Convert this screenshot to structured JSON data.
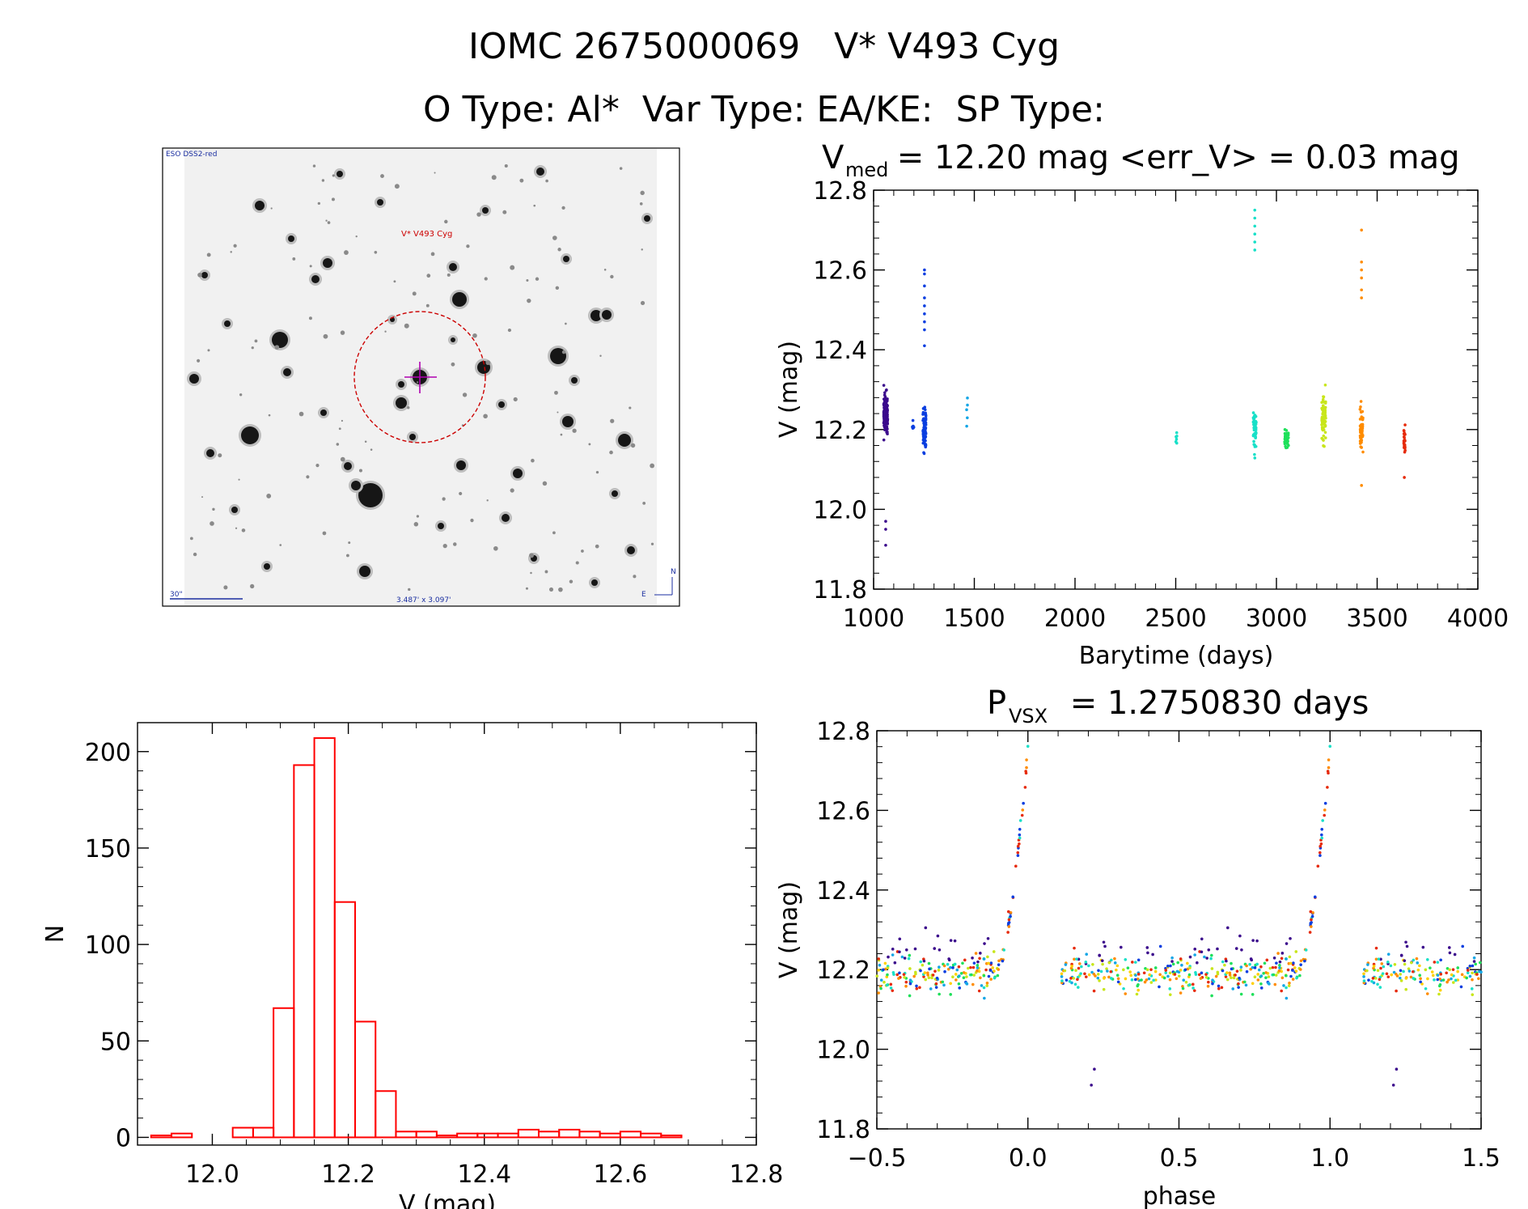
{
  "header": {
    "line1": "IOMC 2675000069   V* V493 Cyg",
    "line2": "O Type: Al*  Var Type: EA/KE:  SP Type:"
  },
  "finder_chart": {
    "survey_label": "ESO DSS2-red",
    "target_label": "V* V493 Cyg",
    "scale_label": "30\"",
    "size_label": "3.487' x 3.097'",
    "north_label": "N",
    "east_label": "E"
  },
  "colors": {
    "histogram": "#ff0000",
    "axis": "#000000",
    "finder_circle": "#cc0000",
    "crosshair": "#b000b0",
    "epoch_palette": [
      "#3b0a8c",
      "#0a3ee0",
      "#14a6e6",
      "#18e0c8",
      "#1ee05a",
      "#c8e61a",
      "#ffd000",
      "#ff8c00",
      "#e62a0a"
    ]
  },
  "chart_data": [
    {
      "type": "scatter",
      "id": "lightcurve",
      "title_main": "V",
      "title_sub": "med",
      "title_rest": " = 12.20 mag <err_V> = 0.03 mag",
      "xlabel": "Barytime (days)",
      "ylabel": "V (mag)",
      "xlim": [
        1000,
        4000
      ],
      "ylim": [
        12.8,
        11.8
      ],
      "xticks": [
        1000,
        1500,
        2000,
        2500,
        3000,
        3500,
        4000
      ],
      "xtick_labels": [
        "1000",
        "1500",
        "2000",
        "2500",
        "3000",
        "3500",
        "4000"
      ],
      "yticks": [
        11.8,
        12.0,
        12.2,
        12.4,
        12.6,
        12.8
      ],
      "ytick_labels": [
        "11.8",
        "12.0",
        "12.2",
        "12.4",
        "12.6",
        "12.8"
      ],
      "groups": [
        {
          "t0": 1050,
          "t1": 1070,
          "center": 12.24,
          "spread": 0.05,
          "n": 140,
          "color_index": 0,
          "outliers": [
            11.91,
            11.95,
            11.97
          ]
        },
        {
          "t0": 1190,
          "t1": 1200,
          "center": 12.21,
          "spread": 0.02,
          "n": 6,
          "color_index": 1,
          "outliers": []
        },
        {
          "t0": 1245,
          "t1": 1260,
          "center": 12.2,
          "spread": 0.06,
          "n": 70,
          "color_index": 1,
          "outliers": [
            12.41,
            12.45,
            12.47,
            12.49,
            12.51,
            12.53,
            12.56,
            12.59,
            12.6
          ]
        },
        {
          "t0": 1460,
          "t1": 1470,
          "center": 12.25,
          "spread": 0.03,
          "n": 5,
          "color_index": 2,
          "outliers": []
        },
        {
          "t0": 2500,
          "t1": 2510,
          "center": 12.18,
          "spread": 0.02,
          "n": 6,
          "color_index": 3,
          "outliers": []
        },
        {
          "t0": 2885,
          "t1": 2900,
          "center": 12.2,
          "spread": 0.05,
          "n": 55,
          "color_index": 3,
          "outliers": [
            12.65,
            12.67,
            12.69,
            12.71,
            12.73,
            12.75
          ]
        },
        {
          "t0": 3040,
          "t1": 3060,
          "center": 12.18,
          "spread": 0.03,
          "n": 35,
          "color_index": 4,
          "outliers": []
        },
        {
          "t0": 3225,
          "t1": 3245,
          "center": 12.23,
          "spread": 0.06,
          "n": 70,
          "color_index": 5,
          "outliers": []
        },
        {
          "t0": 3415,
          "t1": 3430,
          "center": 12.2,
          "spread": 0.06,
          "n": 60,
          "color_index": 7,
          "outliers": [
            12.53,
            12.55,
            12.58,
            12.6,
            12.62,
            12.7,
            12.06
          ]
        },
        {
          "t0": 3630,
          "t1": 3640,
          "center": 12.17,
          "spread": 0.03,
          "n": 22,
          "color_index": 8,
          "outliers": [
            12.08
          ]
        }
      ]
    },
    {
      "type": "bar",
      "id": "histogram",
      "xlabel": "V (mag)",
      "ylabel": "N",
      "xlim": [
        11.89,
        12.8
      ],
      "ylim": [
        -4,
        215
      ],
      "xticks": [
        12.0,
        12.2,
        12.4,
        12.6,
        12.8
      ],
      "xtick_labels": [
        "12.0",
        "12.2",
        "12.4",
        "12.6",
        "12.8"
      ],
      "yticks": [
        0,
        50,
        100,
        150,
        200
      ],
      "ytick_labels": [
        "0",
        "50",
        "100",
        "150",
        "200"
      ],
      "bin_start": 11.91,
      "bin_width": 0.03,
      "values": [
        1,
        2,
        0,
        0,
        5,
        5,
        67,
        193,
        207,
        122,
        60,
        24,
        3,
        3,
        1,
        2,
        2,
        2,
        4,
        3,
        4,
        3,
        2,
        3,
        2,
        1
      ]
    },
    {
      "type": "scatter",
      "id": "phased",
      "title_main": "P",
      "title_sub": "VSX",
      "title_rest": " = 1.2750830 days",
      "xlabel": "phase",
      "ylabel": "V (mag)",
      "period_days": 1.275083,
      "xlim": [
        -0.5,
        1.5
      ],
      "ylim": [
        12.8,
        11.8
      ],
      "xticks": [
        -0.5,
        0.0,
        0.5,
        1.0,
        1.5
      ],
      "xtick_labels": [
        "−0.5",
        "0.0",
        "0.5",
        "1.0",
        "1.5"
      ],
      "yticks": [
        11.8,
        12.0,
        12.2,
        12.4,
        12.6,
        12.8
      ],
      "ytick_labels": [
        "11.8",
        "12.0",
        "12.2",
        "12.4",
        "12.6",
        "12.8"
      ],
      "eclipse_phase": 0.0,
      "eclipse_depth_mag": 12.75,
      "out_of_eclipse_mag": 12.21
    }
  ]
}
